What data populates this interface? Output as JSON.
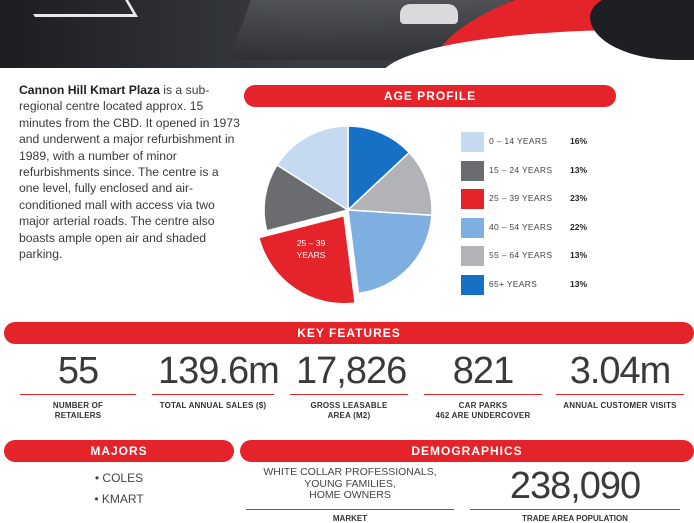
{
  "intro": {
    "name": "Cannon Hill Kmart Plaza",
    "text": " is a sub-regional centre located approx. 15 minutes from the CBD. It opened in 1973 and underwent a major refurbishment in 1989, with a number of minor refurbishments since. The centre is a one level, fully enclosed and air-conditioned mall with access via two major arterial roads. The centre also boasts ample open air and shaded parking."
  },
  "sections": {
    "age_profile": "AGE PROFILE",
    "key_features": "KEY FEATURES",
    "majors": "MAJORS",
    "demographics": "DEMOGRAPHICS"
  },
  "chart_data": {
    "type": "pie",
    "categories": [
      "0 – 14 YEARS",
      "15 – 24 YEARS",
      "25 – 39 YEARS",
      "40 – 54 YEARS",
      "55 – 64 YEARS",
      "65+ YEARS"
    ],
    "values": [
      16,
      13,
      23,
      22,
      13,
      13
    ],
    "labels": [
      "16%",
      "13%",
      "23%",
      "22%",
      "13%",
      "13%"
    ],
    "colors": [
      "#c5d9f0",
      "#6a6c70",
      "#e4232a",
      "#7faee0",
      "#b2b3b6",
      "#1671c6"
    ],
    "exploded_label": "25 – 39 YEARS",
    "exploded_label_lines": [
      "25 – 39",
      "YEARS"
    ],
    "title": "AGE PROFILE",
    "legend_position": "right"
  },
  "key_features": [
    {
      "value": "55",
      "label": "NUMBER OF RETAILERS",
      "label_lines": [
        "NUMBER OF",
        "RETAILERS"
      ]
    },
    {
      "value": "139.6m",
      "label": "TOTAL ANNUAL SALES ($)",
      "label_lines": [
        "TOTAL ANNUAL SALES ($)"
      ]
    },
    {
      "value": "17,826",
      "label": "GROSS LEASABLE AREA (M2)",
      "label_lines": [
        "GROSS LEASABLE",
        "AREA (M2)"
      ]
    },
    {
      "value": "821",
      "label": "CAR PARKS 462 ARE UNDERCOVER",
      "label_lines": [
        "CAR PARKS",
        "462 ARE UNDERCOVER"
      ]
    },
    {
      "value": "3.04m",
      "label": "ANNUAL CUSTOMER VISITS",
      "label_lines": [
        "ANNUAL CUSTOMER VISITS"
      ]
    }
  ],
  "majors": [
    "• COLES",
    "• KMART"
  ],
  "demographics": {
    "market_lines": [
      "WHITE COLLAR PROFESSIONALS,",
      "YOUNG FAMILIES,",
      "HOME OWNERS"
    ],
    "market_label": "MARKET",
    "population_value": "238,090",
    "population_label": "TRADE AREA POPULATION"
  },
  "colors": {
    "accent": "#e4232a",
    "text": "#3a3a3a"
  }
}
